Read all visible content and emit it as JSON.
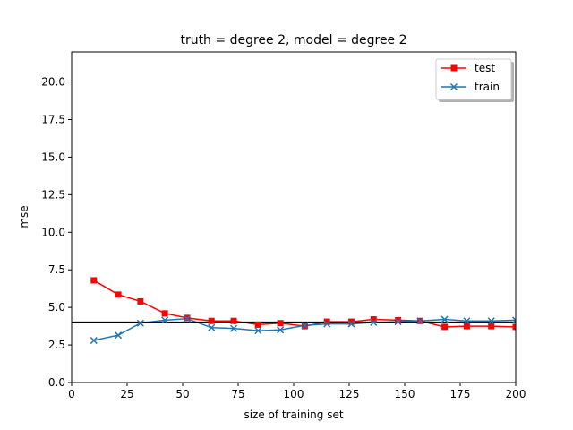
{
  "chart_data": {
    "type": "line",
    "title": "truth = degree 2, model = degree 2",
    "xlabel": "size of training set",
    "ylabel": "mse",
    "xlim": [
      0,
      200
    ],
    "ylim": [
      0,
      22
    ],
    "xticks": [
      0,
      25,
      50,
      75,
      100,
      125,
      150,
      175,
      200
    ],
    "yticks": [
      0.0,
      2.5,
      5.0,
      7.5,
      10.0,
      12.5,
      15.0,
      17.5,
      20.0
    ],
    "xtick_labels": [
      "0",
      "25",
      "50",
      "75",
      "100",
      "125",
      "150",
      "175",
      "200"
    ],
    "ytick_labels": [
      "0.0",
      "2.5",
      "5.0",
      "7.5",
      "10.0",
      "12.5",
      "15.0",
      "17.5",
      "20.0"
    ],
    "grid": false,
    "legend_position": "top-right",
    "reference_line": {
      "y": 4.0,
      "color": "#000000"
    },
    "x": [
      10,
      21,
      31,
      42,
      52,
      63,
      73,
      84,
      94,
      105,
      115,
      126,
      136,
      147,
      157,
      168,
      178,
      189,
      200
    ],
    "series": [
      {
        "name": "test",
        "color": "#ff0000",
        "marker": "square",
        "values": [
          6.8,
          5.85,
          5.4,
          4.6,
          4.3,
          4.1,
          4.1,
          3.85,
          3.95,
          3.75,
          4.05,
          4.05,
          4.2,
          4.15,
          4.1,
          3.7,
          3.75,
          3.75,
          3.7
        ]
      },
      {
        "name": "train",
        "color": "#1f77b4",
        "marker": "x",
        "values": [
          2.8,
          3.15,
          3.95,
          4.15,
          4.25,
          3.65,
          3.6,
          3.45,
          3.5,
          3.8,
          3.9,
          3.9,
          4.0,
          4.05,
          4.1,
          4.2,
          4.1,
          4.1,
          4.15
        ]
      }
    ]
  }
}
